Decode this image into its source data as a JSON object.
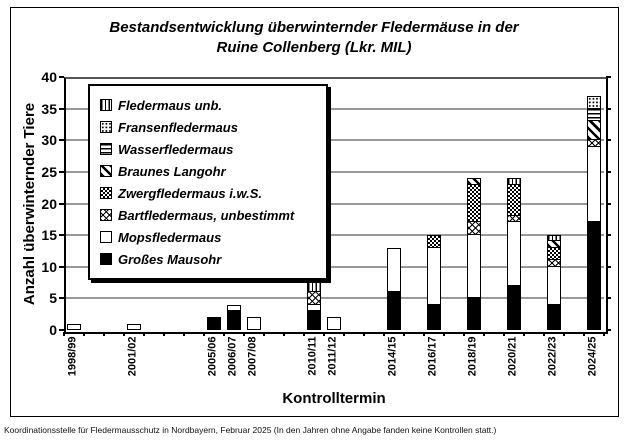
{
  "figure": {
    "title": "Bestandsentwicklung überwinternder Fledermäuse in der Ruine Collenberg (Lkr. MIL)",
    "footnote": "Koordinationsstelle für Fledermausschutz in Nordbayern, Februar 2025 (In den Jahren ohne Angabe fanden keine Kontrollen statt.)"
  },
  "chart_data": {
    "type": "bar",
    "stacked": true,
    "title": "Bestandsentwicklung überwinternder Fledermäuse in der Ruine Collenberg (Lkr. MIL)",
    "xlabel": "Kontrolltermin",
    "ylabel": "Anzahl überwinternder Tiere",
    "ylim": [
      0,
      40
    ],
    "ytick_step": 5,
    "grid": true,
    "legend_position": "upper-left-inside",
    "x_slot_count": 27,
    "legend": [
      {
        "key": "unb",
        "label": "Fledermaus unb.",
        "pattern": "vertical-lines"
      },
      {
        "key": "fransen",
        "label": "Fransenfledermaus",
        "pattern": "dots"
      },
      {
        "key": "wasser",
        "label": "Wasserfledermaus",
        "pattern": "horizontal-lines"
      },
      {
        "key": "langohr",
        "label": "Braunes Langohr",
        "pattern": "diagonal-stripes"
      },
      {
        "key": "zwerg",
        "label": "Zwergfledermaus i.w.S.",
        "pattern": "dense-checker"
      },
      {
        "key": "bart",
        "label": "Bartfledermaus, unbestimmt",
        "pattern": "diagonal-crosshatch"
      },
      {
        "key": "mops",
        "label": "Mopsfledermaus",
        "pattern": "white"
      },
      {
        "key": "mausohr",
        "label": "Großes Mausohr",
        "pattern": "solid-black"
      }
    ],
    "stack_order_bottom_to_top": [
      "mausohr",
      "mops",
      "bart",
      "zwerg",
      "langohr",
      "wasser",
      "fransen",
      "unb"
    ],
    "categories": [
      {
        "label": "1998/99",
        "slot": 0,
        "values": {
          "mops": 1
        }
      },
      {
        "label": "2001/02",
        "slot": 3,
        "values": {
          "mops": 1
        }
      },
      {
        "label": "2005/06",
        "slot": 7,
        "values": {
          "mausohr": 2
        }
      },
      {
        "label": "2006/07",
        "slot": 8,
        "values": {
          "mausohr": 3,
          "mops": 1
        }
      },
      {
        "label": "2007/08",
        "slot": 9,
        "values": {
          "mops": 2
        }
      },
      {
        "label": "2010/11",
        "slot": 12,
        "values": {
          "mausohr": 3,
          "mops": 1,
          "bart": 2,
          "unb": 2
        }
      },
      {
        "label": "2011/12",
        "slot": 13,
        "values": {
          "mops": 2
        }
      },
      {
        "label": "2014/15",
        "slot": 16,
        "values": {
          "mausohr": 6,
          "mops": 7
        }
      },
      {
        "label": "2016/17",
        "slot": 18,
        "values": {
          "mausohr": 4,
          "mops": 9,
          "zwerg": 2
        }
      },
      {
        "label": "2018/19",
        "slot": 20,
        "values": {
          "mausohr": 5,
          "mops": 10,
          "bart": 2,
          "zwerg": 6,
          "langohr": 1
        }
      },
      {
        "label": "2020/21",
        "slot": 22,
        "values": {
          "mausohr": 7,
          "mops": 10,
          "bart": 1,
          "zwerg": 5,
          "unb": 1
        }
      },
      {
        "label": "2022/23",
        "slot": 24,
        "values": {
          "mausohr": 4,
          "mops": 6,
          "bart": 1,
          "zwerg": 2,
          "langohr": 1,
          "unb": 1
        }
      },
      {
        "label": "2024/25",
        "slot": 26,
        "values": {
          "mausohr": 17,
          "mops": 12,
          "bart": 1,
          "langohr": 3,
          "wasser": 2,
          "fransen": 2
        }
      }
    ],
    "colors": {
      "foreground": "#000000",
      "background": "#ffffff",
      "gridline": "#999999"
    }
  }
}
